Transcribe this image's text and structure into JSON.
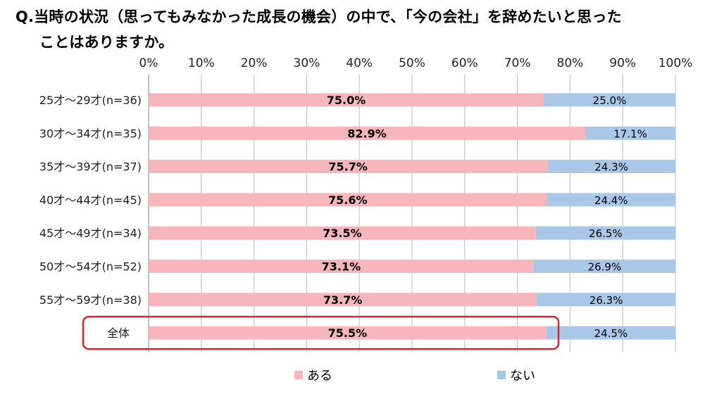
{
  "title": {
    "line1": "Q.当時の状況（思ってもみなかった成長の機会）の中で、「今の会社」を辞めたいと思った",
    "line2": "ことはありますか。"
  },
  "legend": {
    "a": "ある",
    "b": "ない"
  },
  "colors": {
    "a": "#f7b6bb",
    "b": "#a9c8e8",
    "highlight": "#d9262c",
    "grid": "#bdbdbd",
    "axis": "#808080"
  },
  "chart_data": {
    "type": "bar",
    "orientation": "horizontal",
    "stacked": true,
    "percent": true,
    "xlim": [
      0,
      100
    ],
    "xticks": [
      "0%",
      "10%",
      "20%",
      "30%",
      "40%",
      "50%",
      "60%",
      "70%",
      "80%",
      "90%",
      "100%"
    ],
    "categories": [
      "25才～29才(n=36)",
      "30才～34才(n=35)",
      "35才～39才(n=37)",
      "40才～44才(n=45)",
      "45才～49才(n=34)",
      "50才～54才(n=52)",
      "55才～59才(n=38)",
      "全体"
    ],
    "series": [
      {
        "name": "ある",
        "values": [
          75.0,
          82.9,
          75.7,
          75.6,
          73.5,
          73.1,
          73.7,
          75.5
        ],
        "labels": [
          "75.0%",
          "82.9%",
          "75.7%",
          "75.6%",
          "73.5%",
          "73.1%",
          "73.7%",
          "75.5%"
        ]
      },
      {
        "name": "ない",
        "values": [
          25.0,
          17.1,
          24.3,
          24.4,
          26.5,
          26.9,
          26.3,
          24.5
        ],
        "labels": [
          "25.0%",
          "17.1%",
          "24.3%",
          "24.4%",
          "26.5%",
          "26.9%",
          "26.3%",
          "24.5%"
        ]
      }
    ],
    "highlighted_category": "全体",
    "grid": true,
    "legend_position": "bottom"
  }
}
